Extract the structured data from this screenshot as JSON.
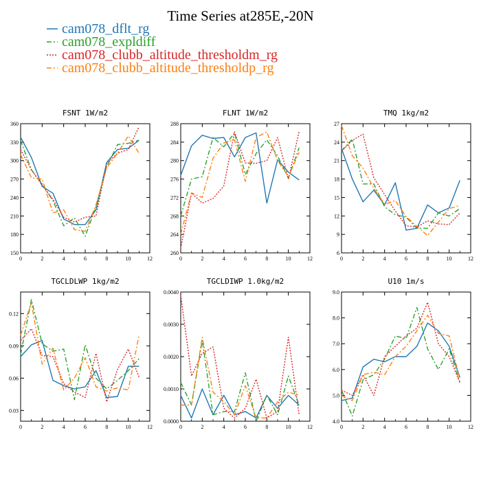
{
  "figure": {
    "title": "Time Series at285E,-20N",
    "legend": [
      {
        "label": "cam078_dflt_rg",
        "color": "#1f77b4",
        "dash": ""
      },
      {
        "label": "cam078_expldiff",
        "color": "#2ca02c",
        "dash": "7,3,2,3"
      },
      {
        "label": "cam078_clubb_altitude_thresholdm_rg",
        "color": "#d62728",
        "dash": "2,2"
      },
      {
        "label": "cam078_clubb_altitude_thresholdp_rg",
        "color": "#ff7f0e",
        "dash": "7,3,2,3"
      }
    ]
  },
  "chart_data": [
    {
      "type": "line",
      "name": "fsnt",
      "title": "FSNT  1W/m2",
      "x": [
        0,
        1,
        2,
        3,
        4,
        5,
        6,
        7,
        8,
        9,
        10,
        11
      ],
      "xlim": [
        0,
        12
      ],
      "xticks": [
        0,
        2,
        4,
        6,
        8,
        10,
        12
      ],
      "ylim": [
        150,
        360
      ],
      "yticks": [
        150,
        180,
        210,
        240,
        270,
        300,
        330,
        360
      ],
      "yticklabels": [
        "150",
        "180",
        "210",
        "240",
        "270",
        "300",
        "330",
        "360"
      ],
      "series": [
        {
          "name": "cam078_dflt_rg",
          "values": [
            338,
            305,
            258,
            247,
            205,
            196,
            196,
            220,
            297,
            318,
            320,
            333
          ]
        },
        {
          "name": "cam078_expldiff",
          "values": [
            333,
            285,
            262,
            235,
            194,
            207,
            177,
            225,
            290,
            326,
            328,
            333
          ]
        },
        {
          "name": "cam078_clubb_altitude_thresholdm_rg",
          "values": [
            318,
            285,
            260,
            237,
            208,
            200,
            208,
            210,
            295,
            312,
            318,
            355
          ]
        },
        {
          "name": "cam078_clubb_altitude_thresholdp_rg",
          "values": [
            310,
            272,
            270,
            215,
            220,
            188,
            185,
            228,
            288,
            312,
            340,
            312
          ]
        }
      ]
    },
    {
      "type": "line",
      "name": "flnt",
      "title": "FLNT  1W/m2",
      "x": [
        0,
        1,
        2,
        3,
        4,
        5,
        6,
        7,
        8,
        9,
        10,
        11
      ],
      "xlim": [
        0,
        12
      ],
      "xticks": [
        0,
        2,
        4,
        6,
        8,
        10,
        12
      ],
      "ylim": [
        260,
        288
      ],
      "yticks": [
        260,
        264,
        268,
        272,
        276,
        280,
        284,
        288
      ],
      "yticklabels": [
        "260",
        "264",
        "268",
        "272",
        "276",
        "280",
        "284",
        "288"
      ],
      "series": [
        {
          "name": "cam078_dflt_rg",
          "values": [
            276.8,
            283.2,
            285.5,
            284.8,
            285,
            280.8,
            285,
            286,
            270.8,
            280.2,
            277.5,
            275.8
          ]
        },
        {
          "name": "cam078_expldiff",
          "values": [
            268,
            276,
            276.5,
            285,
            283,
            286,
            277,
            281.5,
            284.5,
            281,
            276.2,
            282.8
          ]
        },
        {
          "name": "cam078_clubb_altitude_thresholdm_rg",
          "values": [
            261,
            273,
            270.8,
            271.8,
            274.5,
            286.2,
            279.5,
            279.4,
            280,
            285,
            276,
            286.3
          ]
        },
        {
          "name": "cam078_clubb_altitude_thresholdp_rg",
          "values": [
            264,
            273,
            272,
            280.5,
            283.8,
            284.5,
            275.5,
            285,
            286.2,
            280,
            276.5,
            281.8
          ]
        }
      ]
    },
    {
      "type": "line",
      "name": "tmq",
      "title": "TMQ  1kg/m2",
      "x": [
        0,
        1,
        2,
        3,
        4,
        5,
        6,
        7,
        8,
        9,
        10,
        11
      ],
      "xlim": [
        0,
        12
      ],
      "xticks": [
        0,
        2,
        4,
        6,
        8,
        10,
        12
      ],
      "ylim": [
        6,
        27
      ],
      "yticks": [
        6,
        9,
        12,
        15,
        18,
        21,
        24,
        27
      ],
      "yticklabels": [
        "6",
        "9",
        "12",
        "15",
        "18",
        "21",
        "24",
        "27"
      ],
      "series": [
        {
          "name": "cam078_dflt_rg",
          "values": [
            23,
            18,
            14.3,
            16.2,
            13.8,
            17.4,
            9.7,
            10,
            13.8,
            12.5,
            13.3,
            17.8
          ]
        },
        {
          "name": "cam078_expldiff",
          "values": [
            22.6,
            24.5,
            17.2,
            17.2,
            13.5,
            12.2,
            11.8,
            10,
            10,
            12.5,
            12,
            13.2
          ]
        },
        {
          "name": "cam078_clubb_altitude_thresholdm_rg",
          "values": [
            22.5,
            24.3,
            25.3,
            18.2,
            15.5,
            12.8,
            10.4,
            10.2,
            11.2,
            10.7,
            10.6,
            12.5
          ]
        },
        {
          "name": "cam078_clubb_altitude_thresholdp_rg",
          "values": [
            26.7,
            21.8,
            19.8,
            16.5,
            13.9,
            14.5,
            11.9,
            10.3,
            8.8,
            11,
            13.2,
            13.7
          ]
        }
      ]
    },
    {
      "type": "line",
      "name": "tgcldlwp",
      "title": "TGCLDLWP  1kg/m2",
      "x": [
        0,
        1,
        2,
        3,
        4,
        5,
        6,
        7,
        8,
        9,
        10,
        11
      ],
      "xlim": [
        0,
        12
      ],
      "xticks": [
        0,
        2,
        4,
        6,
        8,
        10,
        12
      ],
      "ylim": [
        0.02,
        0.14
      ],
      "yticks": [
        0.03,
        0.06,
        0.09,
        0.12
      ],
      "yticklabels": [
        "0.03",
        "0.06",
        "0.09",
        "0.12"
      ],
      "series": [
        {
          "name": "cam078_dflt_rg",
          "values": [
            0.08,
            0.091,
            0.095,
            0.058,
            0.053,
            0.05,
            0.052,
            0.067,
            0.042,
            0.043,
            0.071,
            0.071
          ]
        },
        {
          "name": "cam078_expldiff",
          "values": [
            0.082,
            0.133,
            0.092,
            0.085,
            0.087,
            0.04,
            0.091,
            0.06,
            0.05,
            0.058,
            0.067,
            0.078
          ]
        },
        {
          "name": "cam078_clubb_altitude_thresholdm_rg",
          "values": [
            0.095,
            0.106,
            0.081,
            0.08,
            0.055,
            0.047,
            0.042,
            0.083,
            0.038,
            0.068,
            0.087,
            0.061
          ]
        },
        {
          "name": "cam078_clubb_altitude_thresholdp_rg",
          "values": [
            0.1,
            0.13,
            0.073,
            0.088,
            0.049,
            0.06,
            0.079,
            0.052,
            0.048,
            0.051,
            0.049,
            0.1
          ]
        }
      ]
    },
    {
      "type": "line",
      "name": "tgcldiwp",
      "title": "TGCLDIWP  1.0kg/m2",
      "x": [
        0,
        1,
        2,
        3,
        4,
        5,
        6,
        7,
        8,
        9,
        10,
        11
      ],
      "xlim": [
        0,
        12
      ],
      "xticks": [
        0,
        2,
        4,
        6,
        8,
        10,
        12
      ],
      "ylim": [
        0,
        0.004
      ],
      "yticks": [
        0,
        0.001,
        0.002,
        0.003,
        0.004
      ],
      "yticklabels": [
        "0.0000",
        "0.0010",
        "0.0020",
        "0.0030",
        "0.0040"
      ],
      "series": [
        {
          "name": "cam078_dflt_rg",
          "values": [
            0.0008,
            0.0001,
            0.001,
            0.0002,
            0.0008,
            0.0002,
            0.0003,
            0.0001,
            0.0008,
            0.0004,
            0.0008,
            0.0005
          ]
        },
        {
          "name": "cam078_expldiff",
          "values": [
            0.0012,
            0.0005,
            0.0025,
            0.0002,
            0.0003,
            0.0003,
            0.0015,
            0.0,
            0.0008,
            0.0002,
            0.0014,
            0.0005
          ]
        },
        {
          "name": "cam078_clubb_altitude_thresholdm_rg",
          "values": [
            0.0039,
            0.0014,
            0.0021,
            0.0023,
            0.0004,
            0.0001,
            0.0004,
            0.0013,
            0.0001,
            0.0003,
            0.0026,
            0.0002
          ]
        },
        {
          "name": "cam078_clubb_altitude_thresholdp_rg",
          "values": [
            0.0005,
            0.0005,
            0.0026,
            0.0009,
            0.0006,
            0.0002,
            0.0011,
            0.0001,
            0.0001,
            0.0006,
            0.0009,
            0.0008
          ]
        }
      ]
    },
    {
      "type": "line",
      "name": "u10",
      "title": "U10  1m/s",
      "x": [
        0,
        1,
        2,
        3,
        4,
        5,
        6,
        7,
        8,
        9,
        10,
        11
      ],
      "xlim": [
        0,
        12
      ],
      "xticks": [
        0,
        2,
        4,
        6,
        8,
        10,
        12
      ],
      "ylim": [
        4,
        9
      ],
      "yticks": [
        4,
        5,
        6,
        7,
        8,
        9
      ],
      "yticklabels": [
        "4.0",
        "5.0",
        "6.0",
        "7.0",
        "8.0",
        "9.0"
      ],
      "series": [
        {
          "name": "cam078_dflt_rg",
          "values": [
            4.8,
            4.9,
            6.1,
            6.4,
            6.3,
            6.5,
            6.5,
            6.9,
            7.8,
            7.5,
            6.9,
            5.7
          ]
        },
        {
          "name": "cam078_expldiff",
          "values": [
            5.2,
            4.2,
            5.6,
            5.8,
            6.4,
            7.3,
            7.2,
            8.4,
            6.8,
            6.0,
            6.8,
            5.5
          ]
        },
        {
          "name": "cam078_clubb_altitude_thresholdm_rg",
          "values": [
            5.2,
            5.0,
            5.8,
            5.0,
            6.5,
            6.9,
            7.3,
            7.6,
            8.6,
            7.0,
            6.5,
            5.5
          ]
        },
        {
          "name": "cam078_clubb_altitude_thresholdp_rg",
          "values": [
            5.0,
            4.8,
            5.8,
            5.9,
            5.8,
            6.5,
            6.9,
            7.5,
            8.1,
            7.4,
            7.3,
            5.6
          ]
        }
      ]
    }
  ]
}
